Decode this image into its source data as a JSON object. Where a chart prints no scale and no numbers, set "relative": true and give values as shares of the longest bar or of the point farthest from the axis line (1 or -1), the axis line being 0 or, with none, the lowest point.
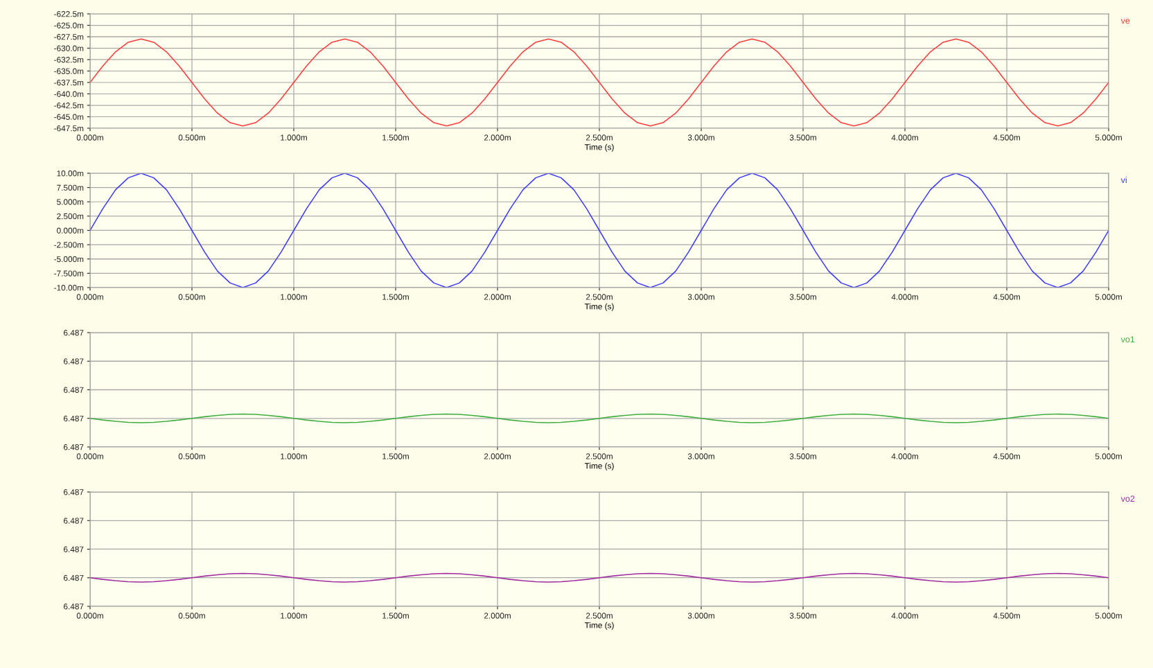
{
  "chart_data": [
    {
      "type": "line",
      "xlabel": "Time (s)",
      "grid": true,
      "xlim": [
        0,
        5
      ],
      "xticks": [
        {
          "value": 0,
          "label": "0.000m"
        },
        {
          "value": 0.5,
          "label": "0.500m"
        },
        {
          "value": 1,
          "label": "1.000m"
        },
        {
          "value": 1.5,
          "label": "1.500m"
        },
        {
          "value": 2,
          "label": "2.000m"
        },
        {
          "value": 2.5,
          "label": "2.500m"
        },
        {
          "value": 3,
          "label": "3.000m"
        },
        {
          "value": 3.5,
          "label": "3.500m"
        },
        {
          "value": 4,
          "label": "4.000m"
        },
        {
          "value": 4.5,
          "label": "4.500m"
        },
        {
          "value": 5,
          "label": "5.000m"
        }
      ],
      "ylim": [
        -647.5,
        -622.5
      ],
      "yticks": [
        {
          "value": -622.5,
          "label": "-622.5m"
        },
        {
          "value": -625,
          "label": "-625.0m"
        },
        {
          "value": -627.5,
          "label": "-627.5m"
        },
        {
          "value": -630,
          "label": "-630.0m"
        },
        {
          "value": -632.5,
          "label": "-632.5m"
        },
        {
          "value": -635,
          "label": "-635.0m"
        },
        {
          "value": -637.5,
          "label": "-637.5m"
        },
        {
          "value": -640,
          "label": "-640.0m"
        },
        {
          "value": -642.5,
          "label": "-642.5m"
        },
        {
          "value": -645,
          "label": "-645.0m"
        },
        {
          "value": -647.5,
          "label": "-647.5m"
        }
      ],
      "x": [
        0,
        0.0625,
        0.125,
        0.1875,
        0.25,
        0.3125,
        0.375,
        0.4375,
        0.5,
        0.5625,
        0.625,
        0.6875,
        0.75,
        0.8125,
        0.875,
        0.9375,
        1,
        1.0625,
        1.125,
        1.1875,
        1.25,
        1.3125,
        1.375,
        1.4375,
        1.5,
        1.5625,
        1.625,
        1.6875,
        1.75,
        1.8125,
        1.875,
        1.9375,
        2,
        2.0625,
        2.125,
        2.1875,
        2.25,
        2.3125,
        2.375,
        2.4375,
        2.5,
        2.5625,
        2.625,
        2.6875,
        2.75,
        2.8125,
        2.875,
        2.9375,
        3,
        3.0625,
        3.125,
        3.1875,
        3.25,
        3.3125,
        3.375,
        3.4375,
        3.5,
        3.5625,
        3.625,
        3.6875,
        3.75,
        3.8125,
        3.875,
        3.9375,
        4,
        4.0625,
        4.125,
        4.1875,
        4.25,
        4.3125,
        4.375,
        4.4375,
        4.5,
        4.5625,
        4.625,
        4.6875,
        4.75,
        4.8125,
        4.875,
        4.9375,
        5
      ],
      "series": [
        {
          "name": "ve",
          "color": "#ff3b3b",
          "values": [
            -637.5,
            -633.9,
            -630.8,
            -628.7,
            -628.0,
            -628.7,
            -630.8,
            -633.9,
            -637.5,
            -641.1,
            -644.2,
            -646.3,
            -647.0,
            -646.3,
            -644.2,
            -641.1,
            -637.5,
            -633.9,
            -630.8,
            -628.7,
            -628.0,
            -628.7,
            -630.8,
            -633.9,
            -637.5,
            -641.1,
            -644.2,
            -646.3,
            -647.0,
            -646.3,
            -644.2,
            -641.1,
            -637.5,
            -633.9,
            -630.8,
            -628.7,
            -628.0,
            -628.7,
            -630.8,
            -633.9,
            -637.5,
            -641.1,
            -644.2,
            -646.3,
            -647.0,
            -646.3,
            -644.2,
            -641.1,
            -637.5,
            -633.9,
            -630.8,
            -628.7,
            -628.0,
            -628.7,
            -630.8,
            -633.9,
            -637.5,
            -641.1,
            -644.2,
            -646.3,
            -647.0,
            -646.3,
            -644.2,
            -641.1,
            -637.5,
            -633.9,
            -630.8,
            -628.7,
            -628.0,
            -628.7,
            -630.8,
            -633.9,
            -637.5,
            -641.1,
            -644.2,
            -646.3,
            -647.0,
            -646.3,
            -644.2,
            -641.1,
            -637.5
          ]
        }
      ]
    },
    {
      "type": "line",
      "xlabel": "Time (s)",
      "grid": true,
      "xlim": [
        0,
        5
      ],
      "xticks": [
        {
          "value": 0,
          "label": "0.000m"
        },
        {
          "value": 0.5,
          "label": "0.500m"
        },
        {
          "value": 1,
          "label": "1.000m"
        },
        {
          "value": 1.5,
          "label": "1.500m"
        },
        {
          "value": 2,
          "label": "2.000m"
        },
        {
          "value": 2.5,
          "label": "2.500m"
        },
        {
          "value": 3,
          "label": "3.000m"
        },
        {
          "value": 3.5,
          "label": "3.500m"
        },
        {
          "value": 4,
          "label": "4.000m"
        },
        {
          "value": 4.5,
          "label": "4.500m"
        },
        {
          "value": 5,
          "label": "5.000m"
        }
      ],
      "ylim": [
        -10,
        10
      ],
      "yticks": [
        {
          "value": 10,
          "label": "10.00m"
        },
        {
          "value": 7.5,
          "label": "7.500m"
        },
        {
          "value": 5,
          "label": "5.000m"
        },
        {
          "value": 2.5,
          "label": "2.500m"
        },
        {
          "value": 0,
          "label": "0.000m"
        },
        {
          "value": -2.5,
          "label": "-2.500m"
        },
        {
          "value": -5,
          "label": "-5.000m"
        },
        {
          "value": -7.5,
          "label": "-7.500m"
        },
        {
          "value": -10,
          "label": "-10.00m"
        }
      ],
      "x": [
        0,
        0.0625,
        0.125,
        0.1875,
        0.25,
        0.3125,
        0.375,
        0.4375,
        0.5,
        0.5625,
        0.625,
        0.6875,
        0.75,
        0.8125,
        0.875,
        0.9375,
        1,
        1.0625,
        1.125,
        1.1875,
        1.25,
        1.3125,
        1.375,
        1.4375,
        1.5,
        1.5625,
        1.625,
        1.6875,
        1.75,
        1.8125,
        1.875,
        1.9375,
        2,
        2.0625,
        2.125,
        2.1875,
        2.25,
        2.3125,
        2.375,
        2.4375,
        2.5,
        2.5625,
        2.625,
        2.6875,
        2.75,
        2.8125,
        2.875,
        2.9375,
        3,
        3.0625,
        3.125,
        3.1875,
        3.25,
        3.3125,
        3.375,
        3.4375,
        3.5,
        3.5625,
        3.625,
        3.6875,
        3.75,
        3.8125,
        3.875,
        3.9375,
        4,
        4.0625,
        4.125,
        4.1875,
        4.25,
        4.3125,
        4.375,
        4.4375,
        4.5,
        4.5625,
        4.625,
        4.6875,
        4.75,
        4.8125,
        4.875,
        4.9375,
        5
      ],
      "series": [
        {
          "name": "vi",
          "color": "#3b3bff",
          "values": [
            0,
            3.8,
            7.1,
            9.2,
            10,
            9.2,
            7.1,
            3.8,
            0,
            -3.8,
            -7.1,
            -9.2,
            -10,
            -9.2,
            -7.1,
            -3.8,
            0,
            3.8,
            7.1,
            9.2,
            10,
            9.2,
            7.1,
            3.8,
            0,
            -3.8,
            -7.1,
            -9.2,
            -10,
            -9.2,
            -7.1,
            -3.8,
            0,
            3.8,
            7.1,
            9.2,
            10,
            9.2,
            7.1,
            3.8,
            0,
            -3.8,
            -7.1,
            -9.2,
            -10,
            -9.2,
            -7.1,
            -3.8,
            0,
            3.8,
            7.1,
            9.2,
            10,
            9.2,
            7.1,
            3.8,
            0,
            -3.8,
            -7.1,
            -9.2,
            -10,
            -9.2,
            -7.1,
            -3.8,
            0,
            3.8,
            7.1,
            9.2,
            10,
            9.2,
            7.1,
            3.8,
            0,
            -3.8,
            -7.1,
            -9.2,
            -10,
            -9.2,
            -7.1,
            -3.8,
            0
          ]
        }
      ]
    },
    {
      "type": "line",
      "xlabel": "Time (s)",
      "grid": true,
      "xlim": [
        0,
        5
      ],
      "relative": true,
      "xticks": [
        {
          "value": 0,
          "label": "0.000m"
        },
        {
          "value": 0.5,
          "label": "0.500m"
        },
        {
          "value": 1,
          "label": "1.000m"
        },
        {
          "value": 1.5,
          "label": "1.500m"
        },
        {
          "value": 2,
          "label": "2.000m"
        },
        {
          "value": 2.5,
          "label": "2.500m"
        },
        {
          "value": 3,
          "label": "3.000m"
        },
        {
          "value": 3.5,
          "label": "3.500m"
        },
        {
          "value": 4,
          "label": "4.000m"
        },
        {
          "value": 4.5,
          "label": "4.500m"
        },
        {
          "value": 5,
          "label": "5.000m"
        }
      ],
      "annotations": [
        "6.487",
        "6.487",
        "6.487",
        "6.487",
        "6.487"
      ],
      "x": [
        0,
        0.0625,
        0.125,
        0.1875,
        0.25,
        0.3125,
        0.375,
        0.4375,
        0.5,
        0.5625,
        0.625,
        0.6875,
        0.75,
        0.8125,
        0.875,
        0.9375,
        1,
        1.0625,
        1.125,
        1.1875,
        1.25,
        1.3125,
        1.375,
        1.4375,
        1.5,
        1.5625,
        1.625,
        1.6875,
        1.75,
        1.8125,
        1.875,
        1.9375,
        2,
        2.0625,
        2.125,
        2.1875,
        2.25,
        2.3125,
        2.375,
        2.4375,
        2.5,
        2.5625,
        2.625,
        2.6875,
        2.75,
        2.8125,
        2.875,
        2.9375,
        3,
        3.0625,
        3.125,
        3.1875,
        3.25,
        3.3125,
        3.375,
        3.4375,
        3.5,
        3.5625,
        3.625,
        3.6875,
        3.75,
        3.8125,
        3.875,
        3.9375,
        4,
        4.0625,
        4.125,
        4.1875,
        4.25,
        4.3125,
        4.375,
        4.4375,
        4.5,
        4.5625,
        4.625,
        4.6875,
        4.75,
        4.8125,
        4.875,
        4.9375,
        5
      ],
      "series": [
        {
          "name": "vo1",
          "color": "#3fae3f",
          "values": [
            0.87,
            0.82,
            0.78,
            0.75,
            0.74,
            0.75,
            0.78,
            0.82,
            0.87,
            0.92,
            0.96,
            0.99,
            1,
            0.99,
            0.96,
            0.92,
            0.87,
            0.82,
            0.78,
            0.75,
            0.74,
            0.75,
            0.78,
            0.82,
            0.87,
            0.92,
            0.96,
            0.99,
            1,
            0.99,
            0.96,
            0.92,
            0.87,
            0.82,
            0.78,
            0.75,
            0.74,
            0.75,
            0.78,
            0.82,
            0.87,
            0.92,
            0.96,
            0.99,
            1,
            0.99,
            0.96,
            0.92,
            0.87,
            0.82,
            0.78,
            0.75,
            0.74,
            0.75,
            0.78,
            0.82,
            0.87,
            0.92,
            0.96,
            0.99,
            1,
            0.99,
            0.96,
            0.92,
            0.87,
            0.82,
            0.78,
            0.75,
            0.74,
            0.75,
            0.78,
            0.82,
            0.87,
            0.92,
            0.96,
            0.99,
            1,
            0.99,
            0.96,
            0.92,
            0.87
          ]
        }
      ]
    },
    {
      "type": "line",
      "xlabel": "Time (s)",
      "grid": true,
      "xlim": [
        0,
        5
      ],
      "relative": true,
      "xticks": [
        {
          "value": 0,
          "label": "0.000m"
        },
        {
          "value": 0.5,
          "label": "0.500m"
        },
        {
          "value": 1,
          "label": "1.000m"
        },
        {
          "value": 1.5,
          "label": "1.500m"
        },
        {
          "value": 2,
          "label": "2.000m"
        },
        {
          "value": 2.5,
          "label": "2.500m"
        },
        {
          "value": 3,
          "label": "3.000m"
        },
        {
          "value": 3.5,
          "label": "3.500m"
        },
        {
          "value": 4,
          "label": "4.000m"
        },
        {
          "value": 4.5,
          "label": "4.500m"
        },
        {
          "value": 5,
          "label": "5.000m"
        }
      ],
      "annotations": [
        "6.487",
        "6.487",
        "6.487",
        "6.487",
        "6.487"
      ],
      "x": [
        0,
        0.0625,
        0.125,
        0.1875,
        0.25,
        0.3125,
        0.375,
        0.4375,
        0.5,
        0.5625,
        0.625,
        0.6875,
        0.75,
        0.8125,
        0.875,
        0.9375,
        1,
        1.0625,
        1.125,
        1.1875,
        1.25,
        1.3125,
        1.375,
        1.4375,
        1.5,
        1.5625,
        1.625,
        1.6875,
        1.75,
        1.8125,
        1.875,
        1.9375,
        2,
        2.0625,
        2.125,
        2.1875,
        2.25,
        2.3125,
        2.375,
        2.4375,
        2.5,
        2.5625,
        2.625,
        2.6875,
        2.75,
        2.8125,
        2.875,
        2.9375,
        3,
        3.0625,
        3.125,
        3.1875,
        3.25,
        3.3125,
        3.375,
        3.4375,
        3.5,
        3.5625,
        3.625,
        3.6875,
        3.75,
        3.8125,
        3.875,
        3.9375,
        4,
        4.0625,
        4.125,
        4.1875,
        4.25,
        4.3125,
        4.375,
        4.4375,
        4.5,
        4.5625,
        4.625,
        4.6875,
        4.75,
        4.8125,
        4.875,
        4.9375,
        5
      ],
      "series": [
        {
          "name": "vo2",
          "color": "#a02ca0",
          "values": [
            0.87,
            0.82,
            0.78,
            0.75,
            0.74,
            0.75,
            0.78,
            0.82,
            0.87,
            0.92,
            0.96,
            0.99,
            1,
            0.99,
            0.96,
            0.92,
            0.87,
            0.82,
            0.78,
            0.75,
            0.74,
            0.75,
            0.78,
            0.82,
            0.87,
            0.92,
            0.96,
            0.99,
            1,
            0.99,
            0.96,
            0.92,
            0.87,
            0.82,
            0.78,
            0.75,
            0.74,
            0.75,
            0.78,
            0.82,
            0.87,
            0.92,
            0.96,
            0.99,
            1,
            0.99,
            0.96,
            0.92,
            0.87,
            0.82,
            0.78,
            0.75,
            0.74,
            0.75,
            0.78,
            0.82,
            0.87,
            0.92,
            0.96,
            0.99,
            1,
            0.99,
            0.96,
            0.92,
            0.87,
            0.82,
            0.78,
            0.75,
            0.74,
            0.75,
            0.78,
            0.82,
            0.87,
            0.92,
            0.96,
            0.99,
            1,
            0.99,
            0.96,
            0.92,
            0.87
          ]
        }
      ]
    }
  ]
}
